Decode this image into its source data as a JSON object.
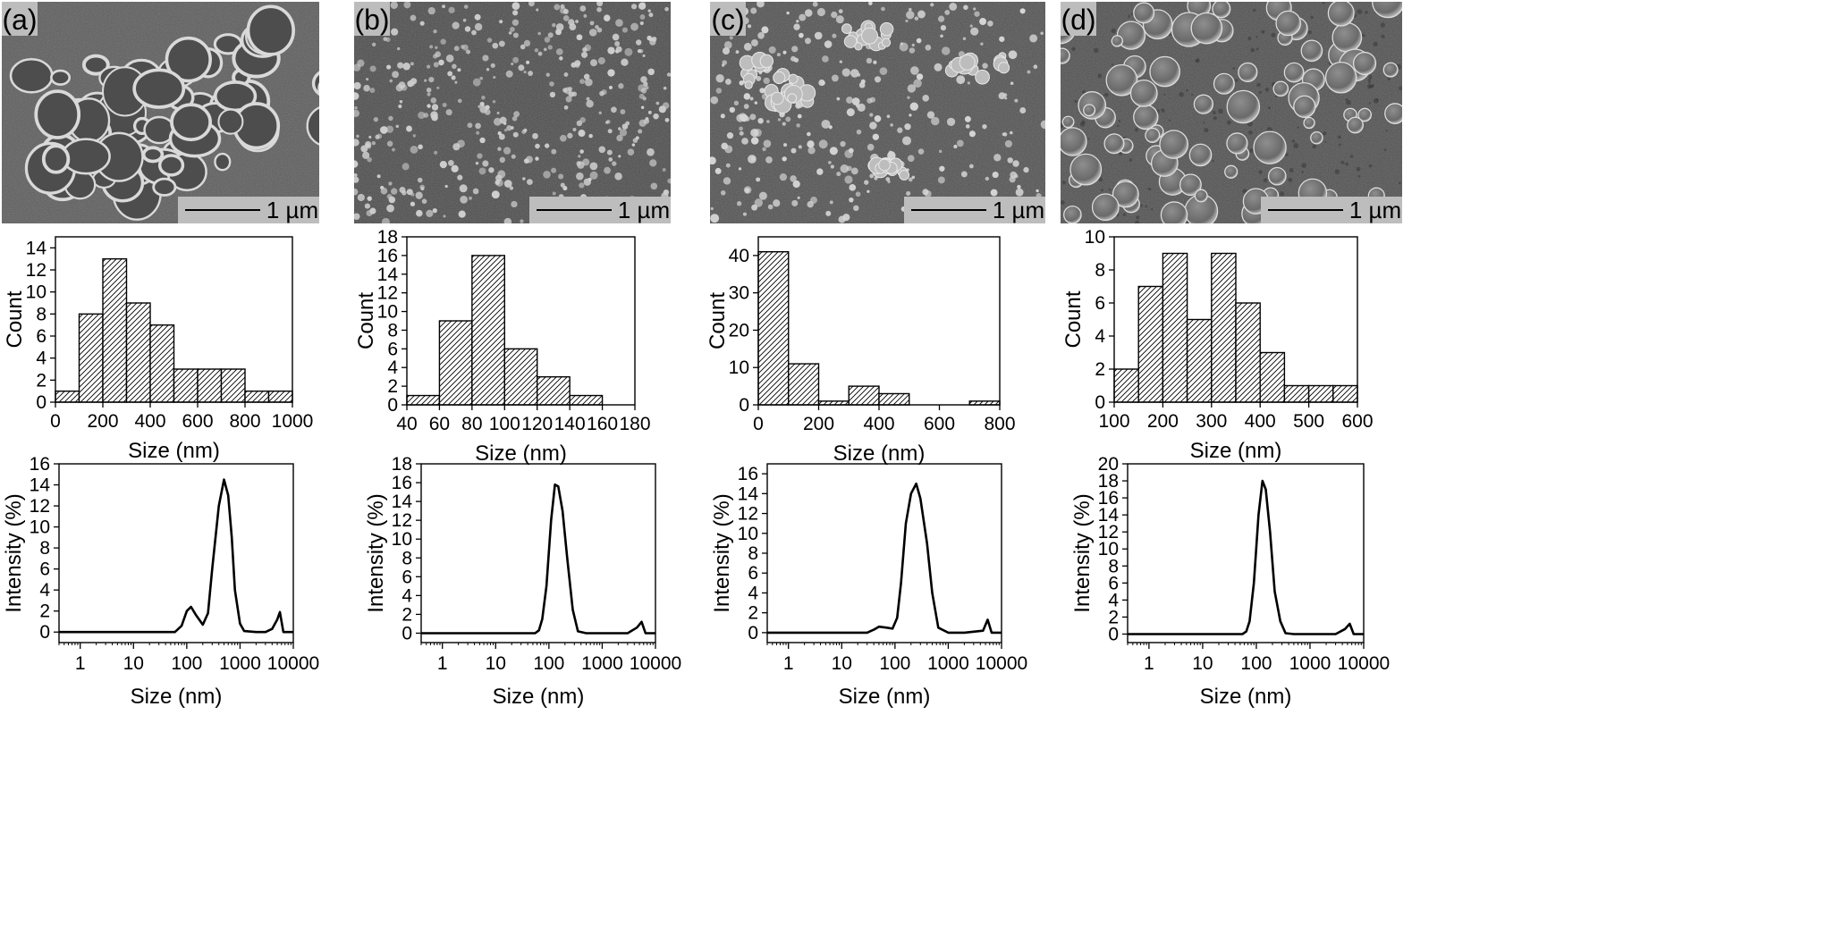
{
  "panels": [
    {
      "label": "(a)",
      "scale_bar_label": "1 µm",
      "sem_texture": "network",
      "chart_data": [
        {
          "type": "bar",
          "title": "",
          "xlabel": "Size (nm)",
          "ylabel": "Count",
          "bin_edges": [
            0,
            100,
            200,
            300,
            400,
            500,
            600,
            700,
            800,
            900,
            1000
          ],
          "values": [
            1,
            8,
            13,
            9,
            7,
            3,
            3,
            3,
            1,
            1
          ],
          "xlim": [
            0,
            1000
          ],
          "ylim": [
            0,
            15
          ],
          "xticks": [
            0,
            200,
            400,
            600,
            800,
            1000
          ],
          "yticks": [
            0,
            2,
            4,
            6,
            8,
            10,
            12,
            14
          ]
        },
        {
          "type": "line",
          "title": "",
          "xscale": "log",
          "xlabel": "Size (nm)",
          "ylabel": "Intensity (%)",
          "x": [
            0.4,
            1,
            10,
            60,
            80,
            100,
            120,
            150,
            200,
            250,
            300,
            400,
            500,
            600,
            700,
            800,
            1000,
            1200,
            2000,
            3000,
            4000,
            5000,
            5600,
            6500,
            10000
          ],
          "y": [
            0,
            0,
            0,
            0,
            0.6,
            2.0,
            2.4,
            1.6,
            0.7,
            1.8,
            6,
            12,
            14.5,
            13,
            9,
            4,
            0.8,
            0.1,
            0,
            0,
            0.3,
            1.2,
            1.9,
            0,
            0
          ],
          "xlim": [
            0.4,
            10000
          ],
          "ylim": [
            -1,
            16
          ],
          "xticks": [
            1,
            10,
            100,
            1000,
            10000
          ],
          "yticks": [
            0,
            2,
            4,
            6,
            8,
            10,
            12,
            14,
            16
          ]
        }
      ]
    },
    {
      "label": "(b)",
      "scale_bar_label": "1 µm",
      "sem_texture": "dots",
      "chart_data": [
        {
          "type": "bar",
          "title": "",
          "xlabel": "Size (nm)",
          "ylabel": "Count",
          "bin_edges": [
            40,
            60,
            80,
            100,
            120,
            140,
            160
          ],
          "values": [
            1,
            9,
            16,
            6,
            3,
            1
          ],
          "xlim": [
            40,
            180
          ],
          "ylim": [
            0,
            18
          ],
          "xticks": [
            40,
            60,
            80,
            100,
            120,
            140,
            160,
            180
          ],
          "yticks": [
            0,
            2,
            4,
            6,
            8,
            10,
            12,
            14,
            16,
            18
          ]
        },
        {
          "type": "line",
          "title": "",
          "xscale": "log",
          "xlabel": "Size (nm)",
          "ylabel": "Intensity (%)",
          "x": [
            0.4,
            1,
            10,
            55,
            65,
            75,
            90,
            110,
            130,
            150,
            180,
            220,
            280,
            350,
            500,
            1000,
            3000,
            4500,
            5500,
            6500,
            10000
          ],
          "y": [
            0,
            0,
            0,
            0,
            0.3,
            1.5,
            5,
            12,
            15.8,
            15.6,
            13,
            8,
            2.5,
            0.2,
            0,
            0,
            0,
            0.6,
            1.2,
            0,
            0
          ],
          "xlim": [
            0.4,
            10000
          ],
          "ylim": [
            -1,
            18
          ],
          "xticks": [
            1,
            10,
            100,
            1000,
            10000
          ],
          "yticks": [
            0,
            2,
            4,
            6,
            8,
            10,
            12,
            14,
            16,
            18
          ]
        }
      ]
    },
    {
      "label": "(c)",
      "scale_bar_label": "1 µm",
      "sem_texture": "mixed",
      "chart_data": [
        {
          "type": "bar",
          "title": "",
          "xlabel": "Size (nm)",
          "ylabel": "Count",
          "bin_edges": [
            0,
            100,
            200,
            300,
            400,
            500,
            600,
            700,
            800
          ],
          "values": [
            41,
            11,
            1,
            5,
            3,
            0,
            0,
            1
          ],
          "xlim": [
            0,
            800
          ],
          "ylim": [
            0,
            45
          ],
          "xticks": [
            0,
            200,
            400,
            600,
            800
          ],
          "yticks": [
            0,
            10,
            20,
            30,
            40
          ]
        },
        {
          "type": "line",
          "title": "",
          "xscale": "log",
          "xlabel": "Size (nm)",
          "ylabel": "Intensity (%)",
          "x": [
            0.4,
            1,
            10,
            30,
            40,
            50,
            70,
            90,
            110,
            130,
            160,
            200,
            250,
            300,
            400,
            500,
            650,
            1000,
            2000,
            4500,
            5500,
            6500,
            10000
          ],
          "y": [
            0,
            0,
            0,
            0,
            0.3,
            0.6,
            0.5,
            0.4,
            1.5,
            5,
            11,
            14,
            15,
            13.5,
            9,
            4,
            0.5,
            0,
            0,
            0.2,
            1.3,
            0,
            0
          ],
          "xlim": [
            0.4,
            10000
          ],
          "ylim": [
            -1,
            17
          ],
          "xticks": [
            1,
            10,
            100,
            1000,
            10000
          ],
          "yticks": [
            0,
            2,
            4,
            6,
            8,
            10,
            12,
            14,
            16
          ]
        }
      ]
    },
    {
      "label": "(d)",
      "scale_bar_label": "1 µm",
      "sem_texture": "discs",
      "chart_data": [
        {
          "type": "bar",
          "title": "",
          "xlabel": "Size (nm)",
          "ylabel": "Count",
          "bin_edges": [
            100,
            150,
            200,
            250,
            300,
            350,
            400,
            450,
            500,
            550,
            600
          ],
          "values": [
            2,
            7,
            9,
            5,
            9,
            6,
            3,
            1,
            1,
            1
          ],
          "xlim": [
            100,
            600
          ],
          "ylim": [
            0,
            10
          ],
          "xticks": [
            100,
            200,
            300,
            400,
            500,
            600
          ],
          "yticks": [
            0,
            2,
            4,
            6,
            8,
            10
          ]
        },
        {
          "type": "line",
          "title": "",
          "xscale": "log",
          "xlabel": "Size (nm)",
          "ylabel": "Intensity (%)",
          "x": [
            0.4,
            1,
            10,
            55,
            65,
            75,
            90,
            110,
            130,
            150,
            180,
            220,
            280,
            350,
            500,
            1000,
            3000,
            4500,
            5500,
            6500,
            10000
          ],
          "y": [
            0,
            0,
            0,
            0,
            0.3,
            1.5,
            6,
            14,
            18,
            17,
            12,
            5,
            1.5,
            0.1,
            0,
            0,
            0,
            0.6,
            1.2,
            0,
            0
          ],
          "xlim": [
            0.4,
            10000
          ],
          "ylim": [
            -1,
            20
          ],
          "xticks": [
            1,
            10,
            100,
            1000,
            10000
          ],
          "yticks": [
            0,
            2,
            4,
            6,
            8,
            10,
            12,
            14,
            16,
            18,
            20
          ]
        }
      ]
    }
  ]
}
